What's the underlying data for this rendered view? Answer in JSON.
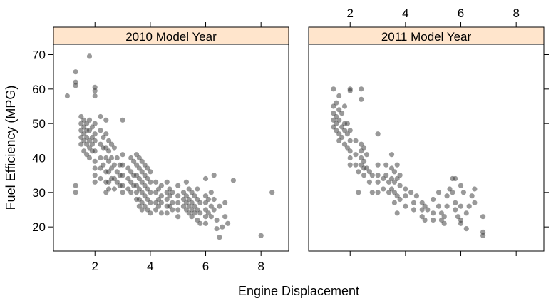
{
  "chart_data": {
    "type": "scatter",
    "layout": "two-panel lattice",
    "xlabel": "Engine Displacement",
    "ylabel": "Fuel Efficiency (MPG)",
    "xlim": [
      0.5,
      9
    ],
    "ylim": [
      13,
      73
    ],
    "x_ticks": [
      2,
      4,
      6,
      8
    ],
    "y_ticks": [
      20,
      30,
      40,
      50,
      60,
      70
    ],
    "strip_color": "#ffe5cc",
    "point_color": "#333333",
    "panels": [
      {
        "title": "2010 Model Year",
        "points": [
          [
            1.0,
            58
          ],
          [
            1.3,
            65
          ],
          [
            1.3,
            62
          ],
          [
            1.3,
            61
          ],
          [
            1.3,
            32
          ],
          [
            1.3,
            30
          ],
          [
            1.8,
            69.5
          ],
          [
            2.0,
            60.5
          ],
          [
            2.0,
            58
          ],
          [
            2.0,
            59.5
          ],
          [
            1.5,
            52
          ],
          [
            1.5,
            50
          ],
          [
            1.5,
            48
          ],
          [
            1.5,
            46
          ],
          [
            1.5,
            44
          ],
          [
            1.6,
            51
          ],
          [
            1.6,
            49
          ],
          [
            1.6,
            47
          ],
          [
            1.6,
            45
          ],
          [
            1.6,
            42
          ],
          [
            1.7,
            50
          ],
          [
            1.7,
            48
          ],
          [
            1.7,
            46
          ],
          [
            1.7,
            44
          ],
          [
            1.7,
            41
          ],
          [
            1.8,
            51
          ],
          [
            1.8,
            48
          ],
          [
            1.8,
            45
          ],
          [
            1.8,
            43
          ],
          [
            1.8,
            40
          ],
          [
            1.9,
            49
          ],
          [
            1.9,
            46
          ],
          [
            1.9,
            44
          ],
          [
            1.9,
            42
          ],
          [
            2.0,
            50
          ],
          [
            2.0,
            47
          ],
          [
            2.0,
            45
          ],
          [
            2.0,
            42
          ],
          [
            2.0,
            39
          ],
          [
            2.0,
            37
          ],
          [
            2.0,
            35
          ],
          [
            2.0,
            33
          ],
          [
            2.2,
            52
          ],
          [
            2.2,
            48
          ],
          [
            2.2,
            44
          ],
          [
            2.2,
            40
          ],
          [
            2.2,
            37
          ],
          [
            2.2,
            34
          ],
          [
            2.3,
            46
          ],
          [
            2.3,
            43
          ],
          [
            2.3,
            38
          ],
          [
            2.4,
            51
          ],
          [
            2.4,
            47
          ],
          [
            2.4,
            43
          ],
          [
            2.4,
            40
          ],
          [
            2.4,
            36
          ],
          [
            2.4,
            33
          ],
          [
            2.4,
            30
          ],
          [
            2.5,
            45
          ],
          [
            2.5,
            42
          ],
          [
            2.5,
            39
          ],
          [
            2.5,
            36
          ],
          [
            2.5,
            33
          ],
          [
            2.5,
            31
          ],
          [
            2.6,
            44
          ],
          [
            2.6,
            40
          ],
          [
            2.6,
            37
          ],
          [
            2.6,
            34
          ],
          [
            2.7,
            43
          ],
          [
            2.7,
            38
          ],
          [
            2.7,
            34
          ],
          [
            2.7,
            31
          ],
          [
            2.8,
            40
          ],
          [
            2.8,
            36
          ],
          [
            2.8,
            33
          ],
          [
            2.9,
            38
          ],
          [
            2.9,
            35
          ],
          [
            2.9,
            32
          ],
          [
            3.0,
            51
          ],
          [
            3.0,
            41
          ],
          [
            3.0,
            38
          ],
          [
            3.0,
            35
          ],
          [
            3.0,
            32
          ],
          [
            3.0,
            30
          ],
          [
            3.2,
            37
          ],
          [
            3.2,
            34
          ],
          [
            3.2,
            31
          ],
          [
            3.3,
            40
          ],
          [
            3.3,
            36
          ],
          [
            3.3,
            33
          ],
          [
            3.3,
            30
          ],
          [
            3.4,
            39
          ],
          [
            3.4,
            35
          ],
          [
            3.4,
            32
          ],
          [
            3.5,
            41
          ],
          [
            3.5,
            38
          ],
          [
            3.5,
            35
          ],
          [
            3.5,
            32
          ],
          [
            3.5,
            30
          ],
          [
            3.5,
            28
          ],
          [
            3.6,
            40
          ],
          [
            3.6,
            37
          ],
          [
            3.6,
            34
          ],
          [
            3.6,
            31
          ],
          [
            3.6,
            28
          ],
          [
            3.6,
            26
          ],
          [
            3.7,
            39
          ],
          [
            3.7,
            36
          ],
          [
            3.7,
            33
          ],
          [
            3.7,
            30
          ],
          [
            3.7,
            27
          ],
          [
            3.7,
            25
          ],
          [
            3.8,
            38
          ],
          [
            3.8,
            35
          ],
          [
            3.8,
            32
          ],
          [
            3.8,
            29
          ],
          [
            3.8,
            26
          ],
          [
            3.9,
            37
          ],
          [
            3.9,
            34
          ],
          [
            3.9,
            31
          ],
          [
            3.9,
            28
          ],
          [
            3.9,
            25
          ],
          [
            4.0,
            36
          ],
          [
            4.0,
            33
          ],
          [
            4.0,
            30
          ],
          [
            4.0,
            27
          ],
          [
            4.0,
            24
          ],
          [
            4.2,
            33
          ],
          [
            4.2,
            30
          ],
          [
            4.2,
            27
          ],
          [
            4.2,
            25
          ],
          [
            4.3,
            31
          ],
          [
            4.3,
            28
          ],
          [
            4.3,
            26
          ],
          [
            4.4,
            32
          ],
          [
            4.4,
            29
          ],
          [
            4.4,
            27
          ],
          [
            4.4,
            24
          ],
          [
            4.6,
            33
          ],
          [
            4.6,
            30
          ],
          [
            4.6,
            28
          ],
          [
            4.6,
            26
          ],
          [
            4.6,
            24
          ],
          [
            4.7,
            31
          ],
          [
            4.7,
            29
          ],
          [
            4.7,
            26
          ],
          [
            4.8,
            30
          ],
          [
            4.8,
            27
          ],
          [
            4.8,
            25
          ],
          [
            5.0,
            32
          ],
          [
            5.0,
            29
          ],
          [
            5.0,
            27
          ],
          [
            5.0,
            25
          ],
          [
            5.0,
            23
          ],
          [
            5.2,
            30
          ],
          [
            5.2,
            28
          ],
          [
            5.2,
            26
          ],
          [
            5.3,
            33
          ],
          [
            5.3,
            29
          ],
          [
            5.3,
            27
          ],
          [
            5.3,
            25
          ],
          [
            5.4,
            31
          ],
          [
            5.4,
            28
          ],
          [
            5.4,
            26
          ],
          [
            5.4,
            24
          ],
          [
            5.5,
            30
          ],
          [
            5.5,
            27
          ],
          [
            5.5,
            25
          ],
          [
            5.5,
            23
          ],
          [
            5.6,
            29
          ],
          [
            5.6,
            26
          ],
          [
            5.6,
            24
          ],
          [
            5.7,
            31
          ],
          [
            5.7,
            28
          ],
          [
            5.7,
            25
          ],
          [
            5.7,
            22
          ],
          [
            5.8,
            27
          ],
          [
            5.8,
            24
          ],
          [
            5.8,
            21
          ],
          [
            6.0,
            34
          ],
          [
            6.0,
            29
          ],
          [
            6.0,
            27
          ],
          [
            6.0,
            25
          ],
          [
            6.0,
            23
          ],
          [
            6.0,
            21
          ],
          [
            6.1,
            28
          ],
          [
            6.1,
            24
          ],
          [
            6.2,
            30
          ],
          [
            6.2,
            26
          ],
          [
            6.2,
            23
          ],
          [
            6.3,
            35
          ],
          [
            6.3,
            28
          ],
          [
            6.3,
            25
          ],
          [
            6.4,
            22
          ],
          [
            6.4,
            19.5
          ],
          [
            6.5,
            26
          ],
          [
            6.5,
            17
          ],
          [
            6.6,
            20
          ],
          [
            6.7,
            27
          ],
          [
            6.7,
            23
          ],
          [
            6.8,
            21
          ],
          [
            7.0,
            33.5
          ],
          [
            8.0,
            17.5
          ],
          [
            8.4,
            30
          ]
        ]
      },
      {
        "title": "2011 Model Year",
        "points": [
          [
            1.4,
            60
          ],
          [
            1.4,
            55
          ],
          [
            1.4,
            53
          ],
          [
            1.4,
            51
          ],
          [
            1.4,
            49
          ],
          [
            1.5,
            56
          ],
          [
            1.5,
            52
          ],
          [
            1.5,
            50
          ],
          [
            1.5,
            48
          ],
          [
            1.6,
            58
          ],
          [
            1.6,
            54
          ],
          [
            1.6,
            51
          ],
          [
            1.6,
            47
          ],
          [
            1.6,
            45
          ],
          [
            1.7,
            53
          ],
          [
            1.7,
            49
          ],
          [
            1.7,
            46
          ],
          [
            1.8,
            55
          ],
          [
            1.8,
            50
          ],
          [
            1.8,
            48
          ],
          [
            1.8,
            44
          ],
          [
            1.9,
            50
          ],
          [
            1.9,
            47
          ],
          [
            1.9,
            43
          ],
          [
            2.0,
            60
          ],
          [
            2.0,
            59.5
          ],
          [
            2.0,
            48
          ],
          [
            2.0,
            45
          ],
          [
            2.0,
            42
          ],
          [
            2.0,
            40
          ],
          [
            2.0,
            38
          ],
          [
            2.2,
            45
          ],
          [
            2.2,
            41
          ],
          [
            2.2,
            38
          ],
          [
            2.3,
            36
          ],
          [
            2.3,
            30
          ],
          [
            2.4,
            60
          ],
          [
            2.4,
            57
          ],
          [
            2.4,
            44
          ],
          [
            2.4,
            42
          ],
          [
            2.4,
            40
          ],
          [
            2.4,
            38
          ],
          [
            2.5,
            43
          ],
          [
            2.5,
            39
          ],
          [
            2.5,
            37
          ],
          [
            2.5,
            35
          ],
          [
            2.6,
            41
          ],
          [
            2.6,
            37
          ],
          [
            2.7,
            36
          ],
          [
            2.7,
            33
          ],
          [
            2.8,
            35
          ],
          [
            2.8,
            30
          ],
          [
            3.0,
            47
          ],
          [
            3.0,
            38
          ],
          [
            3.0,
            35
          ],
          [
            3.0,
            33
          ],
          [
            3.0,
            30
          ],
          [
            3.2,
            34
          ],
          [
            3.2,
            31
          ],
          [
            3.3,
            38
          ],
          [
            3.3,
            35
          ],
          [
            3.4,
            33
          ],
          [
            3.4,
            30
          ],
          [
            3.5,
            41
          ],
          [
            3.5,
            37
          ],
          [
            3.5,
            34
          ],
          [
            3.5,
            31
          ],
          [
            3.6,
            36
          ],
          [
            3.6,
            33
          ],
          [
            3.6,
            30
          ],
          [
            3.6,
            27
          ],
          [
            3.7,
            38
          ],
          [
            3.7,
            34
          ],
          [
            3.7,
            29
          ],
          [
            3.7,
            24
          ],
          [
            3.8,
            35
          ],
          [
            3.8,
            32
          ],
          [
            3.8,
            28
          ],
          [
            4.0,
            31
          ],
          [
            4.0,
            29
          ],
          [
            4.0,
            26
          ],
          [
            4.2,
            30
          ],
          [
            4.3,
            27
          ],
          [
            4.3,
            25
          ],
          [
            4.4,
            29
          ],
          [
            4.6,
            27
          ],
          [
            4.6,
            25
          ],
          [
            4.6,
            23
          ],
          [
            4.7,
            26
          ],
          [
            4.7,
            22
          ],
          [
            4.8,
            25
          ],
          [
            5.0,
            28
          ],
          [
            5.0,
            24
          ],
          [
            5.0,
            22
          ],
          [
            5.2,
            30
          ],
          [
            5.2,
            26
          ],
          [
            5.3,
            24
          ],
          [
            5.3,
            22
          ],
          [
            5.4,
            23
          ],
          [
            5.4,
            21
          ],
          [
            5.5,
            29
          ],
          [
            5.5,
            26
          ],
          [
            5.6,
            31
          ],
          [
            5.7,
            34
          ],
          [
            5.7,
            30
          ],
          [
            5.8,
            34
          ],
          [
            5.8,
            27
          ],
          [
            5.8,
            25
          ],
          [
            5.9,
            23
          ],
          [
            6.0,
            32
          ],
          [
            6.0,
            26
          ],
          [
            6.0,
            22
          ],
          [
            6.0,
            21
          ],
          [
            6.1,
            30
          ],
          [
            6.2,
            24
          ],
          [
            6.2,
            19.5
          ],
          [
            6.3,
            26
          ],
          [
            6.4,
            29
          ],
          [
            6.5,
            31
          ],
          [
            6.5,
            27
          ],
          [
            6.8,
            23
          ],
          [
            6.8,
            18.5
          ],
          [
            6.8,
            17.5
          ]
        ]
      }
    ]
  }
}
